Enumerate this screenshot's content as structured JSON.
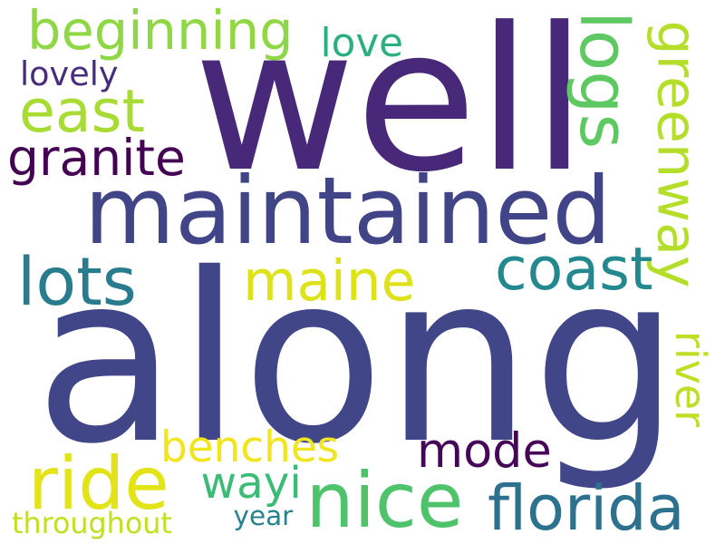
{
  "word_cloud": {
    "words": [
      {
        "key": "along",
        "text": "along",
        "color": "#404688"
      },
      {
        "key": "well",
        "text": "well",
        "color": "#482878"
      },
      {
        "key": "maintained",
        "text": "maintained",
        "color": "#414487"
      },
      {
        "key": "beginning",
        "text": "beginning",
        "color": "#8fd744"
      },
      {
        "key": "logs",
        "text": "logs",
        "color": "#5ec962"
      },
      {
        "key": "greenway",
        "text": "greenway",
        "color": "#b5de2b"
      },
      {
        "key": "love",
        "text": "love",
        "color": "#2ab07f"
      },
      {
        "key": "lovely",
        "text": "lovely",
        "color": "#472d7b"
      },
      {
        "key": "east",
        "text": "east",
        "color": "#a8db34"
      },
      {
        "key": "granite",
        "text": "granite",
        "color": "#440154"
      },
      {
        "key": "lots",
        "text": "lots",
        "color": "#287c8e"
      },
      {
        "key": "maine",
        "text": "maine",
        "color": "#dde318"
      },
      {
        "key": "coast",
        "text": "coast",
        "color": "#23898e"
      },
      {
        "key": "river",
        "text": "river",
        "color": "#bddf26"
      },
      {
        "key": "benches",
        "text": "benches",
        "color": "#f1e51d"
      },
      {
        "key": "mode",
        "text": "mode",
        "color": "#450559"
      },
      {
        "key": "ride",
        "text": "ride",
        "color": "#e2e418"
      },
      {
        "key": "wayi",
        "text": "wayi",
        "color": "#3bbb75"
      },
      {
        "key": "nice",
        "text": "nice",
        "color": "#4ec36b"
      },
      {
        "key": "florida",
        "text": "florida",
        "color": "#2c728e"
      },
      {
        "key": "throughout",
        "text": "throughout",
        "color": "#c2df23"
      },
      {
        "key": "year",
        "text": "year",
        "color": "#26828e"
      }
    ]
  }
}
